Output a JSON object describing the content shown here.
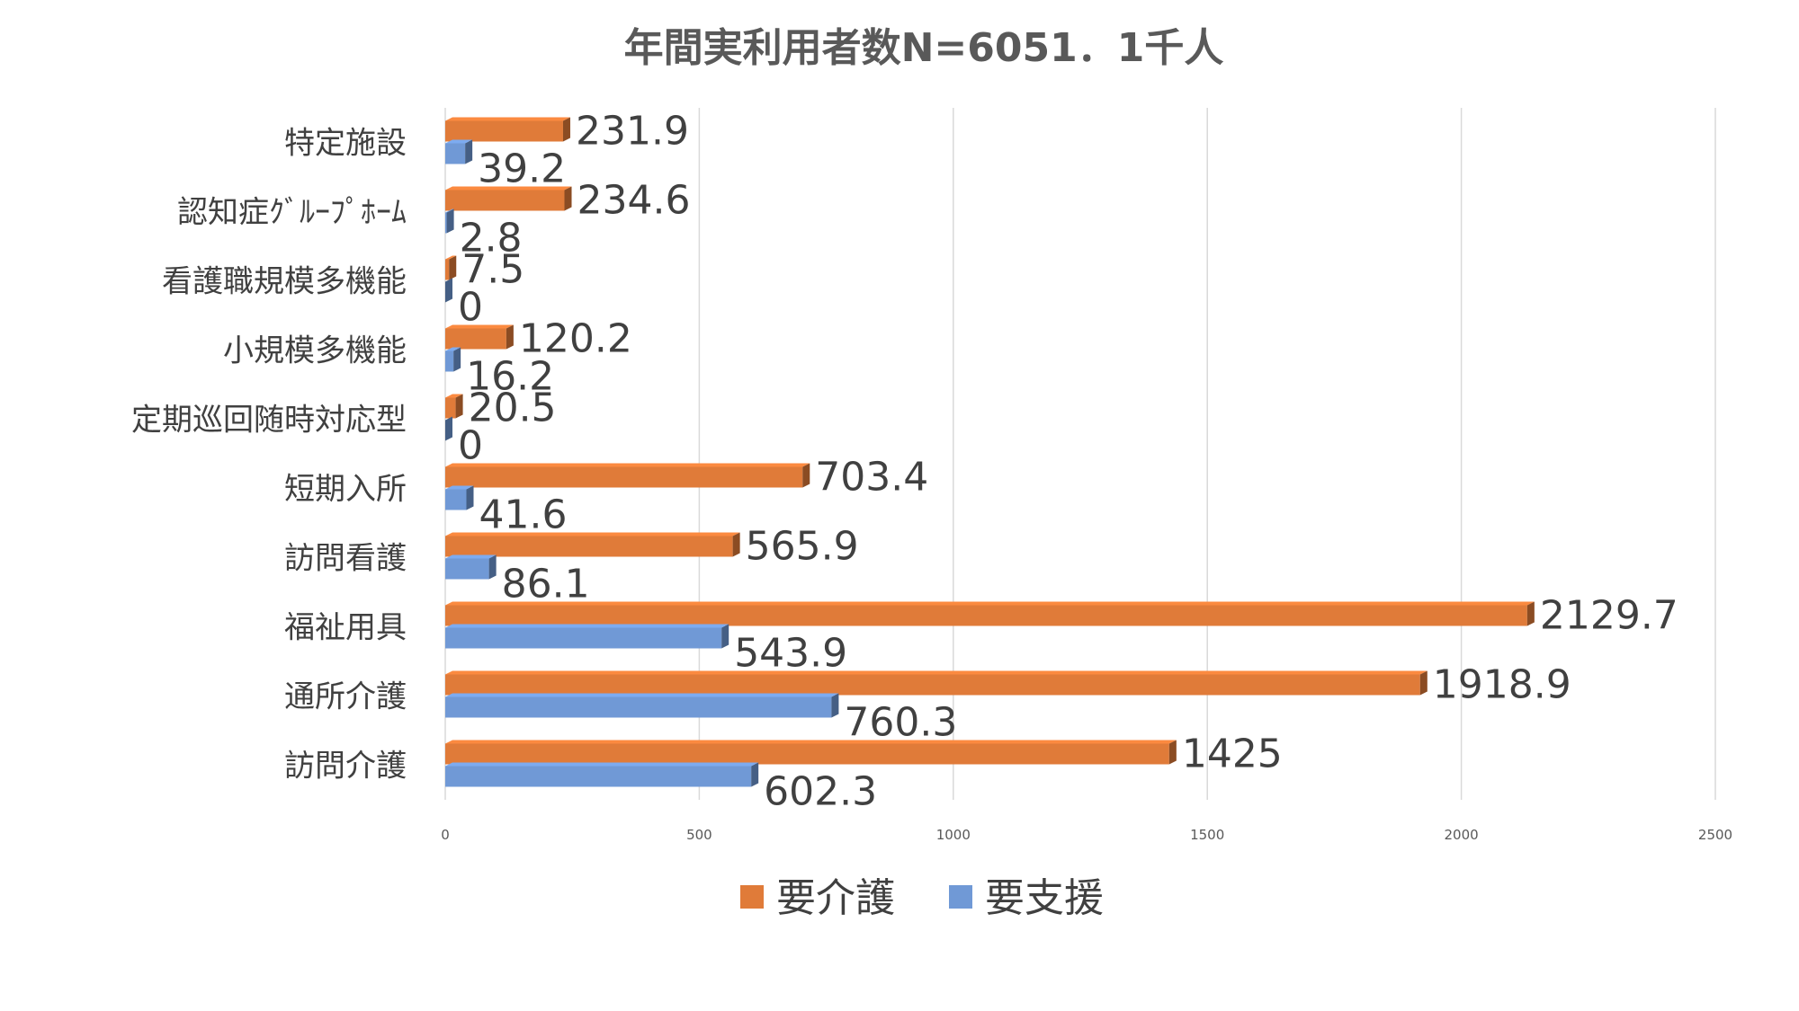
{
  "chart_data": {
    "type": "bar",
    "orientation": "horizontal",
    "title": "年間実利用者数N=6051．1千人",
    "categories": [
      "訪問介護",
      "通所介護",
      "福祉用具",
      "訪問看護",
      "短期入所",
      "定期巡回随時対応型",
      "小規模多機能",
      "看護職規模多機能",
      "認知症ｸﾞﾙｰﾌﾟﾎｰﾑ",
      "特定施設"
    ],
    "series": [
      {
        "name": "要介護",
        "color": "#E07B39",
        "values": [
          1425,
          1918.9,
          2129.7,
          565.9,
          703.4,
          20.5,
          120.2,
          7.5,
          234.6,
          231.9
        ],
        "labels": [
          "1425",
          "1918.9",
          "2129.7",
          "565.9",
          "703.4",
          "20.5",
          "120.2",
          "7.5",
          "234.6",
          "231.9"
        ]
      },
      {
        "name": "要支援",
        "color": "#7099D6",
        "values": [
          602.3,
          760.3,
          543.9,
          86.1,
          41.6,
          0,
          16.2,
          0,
          2.8,
          39.2
        ],
        "labels": [
          "602.3",
          "760.3",
          "543.9",
          "86.1",
          "41.6",
          "0",
          "16.2",
          "0",
          "2.8",
          "39.2"
        ]
      }
    ],
    "xlim": [
      0,
      2500
    ],
    "x_ticks": [
      "0",
      "500",
      "1000",
      "1500",
      "2000",
      "2500"
    ],
    "grid": true,
    "legend_position": "bottom"
  }
}
